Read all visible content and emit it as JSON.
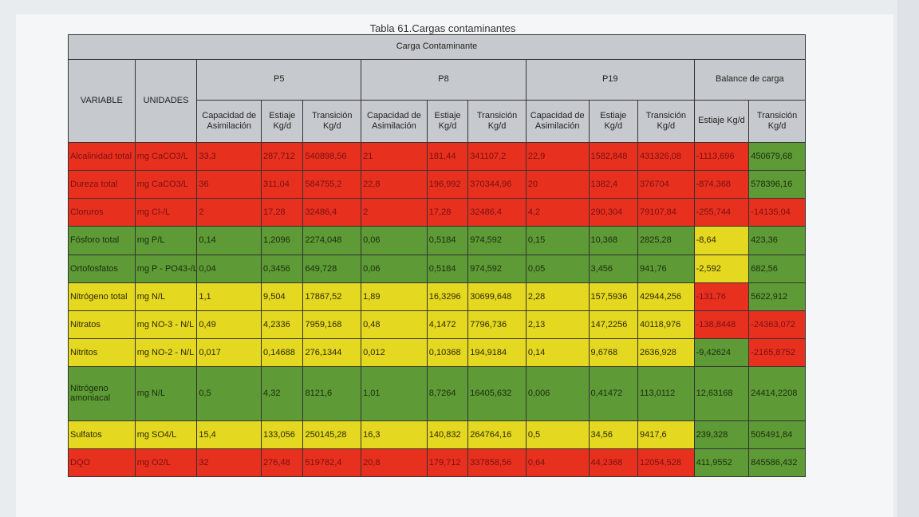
{
  "caption": "Tabla 61.Cargas contaminantes",
  "header": {
    "carga": "Carga Contaminante",
    "variable": "VARIABLE",
    "unidades": "UNIDADES",
    "groups": [
      "P5",
      "P8",
      "P19",
      "Balance de carga"
    ],
    "sub": [
      "Capacidad de Asimilación",
      "Estiaje Kg/d",
      "Transición Kg/d",
      "Capacidad de Asimilación",
      "Estiaje Kg/d",
      "Transición Kg/d",
      "Capacidad de Asimilación",
      "Estiaje Kg/d",
      "Transición Kg/d",
      "Estiaje Kg/d",
      "Transición Kg/d"
    ]
  },
  "colors": {
    "red": "#e8301f",
    "green": "#5e9a35",
    "yellow": "#e5d820",
    "header": "#c6c9cd"
  },
  "rows": [
    {
      "cells": [
        "Alcalinidad total",
        "mg CaCO3/L",
        "33,3",
        "287,712",
        "540898,56",
        "21",
        "181,44",
        "341107,2",
        "22,9",
        "1582,848",
        "431326,08",
        "-1113,696",
        "450679,68"
      ],
      "colors": [
        "r",
        "r",
        "r",
        "r",
        "r",
        "r",
        "r",
        "r",
        "r",
        "r",
        "r",
        "r",
        "g"
      ]
    },
    {
      "cells": [
        "Dureza total",
        "mg CaCO3/L",
        "36",
        "311,04",
        "584755,2",
        "22,8",
        "196,992",
        "370344,96",
        "20",
        "1382,4",
        "376704",
        "-874,368",
        "578396,16"
      ],
      "colors": [
        "r",
        "r",
        "r",
        "r",
        "r",
        "r",
        "r",
        "r",
        "r",
        "r",
        "r",
        "r",
        "g"
      ]
    },
    {
      "cells": [
        "Cloruros",
        "mg Cl-/L",
        "2",
        "17,28",
        "32486,4",
        "2",
        "17,28",
        "32486,4",
        "4,2",
        "290,304",
        "79107,84",
        "-255,744",
        "-14135,04"
      ],
      "colors": [
        "r",
        "r",
        "r",
        "r",
        "r",
        "r",
        "r",
        "r",
        "r",
        "r",
        "r",
        "r",
        "r"
      ]
    },
    {
      "cells": [
        "Fósforo total",
        "mg P/L",
        "0,14",
        "1,2096",
        "2274,048",
        "0,06",
        "0,5184",
        "974,592",
        "0,15",
        "10,368",
        "2825,28",
        "-8,64",
        "423,36"
      ],
      "colors": [
        "g",
        "g",
        "g",
        "g",
        "g",
        "g",
        "g",
        "g",
        "g",
        "g",
        "g",
        "y",
        "g"
      ]
    },
    {
      "cells": [
        "Ortofosfatos",
        "mg P - PO43-/L",
        "0,04",
        "0,3456",
        "649,728",
        "0,06",
        "0,5184",
        "974,592",
        "0,05",
        "3,456",
        "941,76",
        "-2,592",
        "682,56"
      ],
      "colors": [
        "g",
        "g",
        "g",
        "g",
        "g",
        "g",
        "g",
        "g",
        "g",
        "g",
        "g",
        "y",
        "g"
      ]
    },
    {
      "cells": [
        "Nitrógeno total",
        "mg N/L",
        "1,1",
        "9,504",
        "17867,52",
        "1,89",
        "16,3296",
        "30699,648",
        "2,28",
        "157,5936",
        "42944,256",
        "-131,76",
        "5622,912"
      ],
      "colors": [
        "y",
        "y",
        "y",
        "y",
        "y",
        "y",
        "y",
        "y",
        "y",
        "y",
        "y",
        "r",
        "g"
      ]
    },
    {
      "cells": [
        "Nitratos",
        "mg NO-3 - N/L",
        "0,49",
        "4,2336",
        "7959,168",
        "0,48",
        "4,1472",
        "7796,736",
        "2,13",
        "147,2256",
        "40118,976",
        "-138,8448",
        "-24363,072"
      ],
      "colors": [
        "y",
        "y",
        "y",
        "y",
        "y",
        "y",
        "y",
        "y",
        "y",
        "y",
        "y",
        "r",
        "r"
      ]
    },
    {
      "cells": [
        "Nitritos",
        "mg NO-2 - N/L",
        "0,017",
        "0,14688",
        "276,1344",
        "0,012",
        "0,10368",
        "194,9184",
        "0,14",
        "9,6768",
        "2636,928",
        "-9,42624",
        "-2165,8752"
      ],
      "colors": [
        "y",
        "y",
        "y",
        "y",
        "y",
        "y",
        "y",
        "y",
        "y",
        "y",
        "y",
        "g",
        "r"
      ]
    },
    {
      "cells": [
        "Nitrógeno amoniacal",
        "mg N/L",
        "0,5",
        "4,32",
        "8121,6",
        "1,01",
        "8,7264",
        "16405,632",
        "0,006",
        "0,41472",
        "113,0112",
        "12,63168",
        "24414,2208"
      ],
      "colors": [
        "g",
        "g",
        "g",
        "g",
        "g",
        "g",
        "g",
        "g",
        "g",
        "g",
        "g",
        "g",
        "g"
      ]
    },
    {
      "cells": [
        "Sulfatos",
        "mg SO4/L",
        "15,4",
        "133,056",
        "250145,28",
        "16,3",
        "140,832",
        "264764,16",
        "0,5",
        "34,56",
        "9417,6",
        "239,328",
        "505491,84"
      ],
      "colors": [
        "y",
        "y",
        "y",
        "y",
        "y",
        "y",
        "y",
        "y",
        "y",
        "y",
        "y",
        "g",
        "g"
      ]
    },
    {
      "cells": [
        "DQO",
        "mg O2/L",
        "32",
        "276,48",
        "519782,4",
        "20,8",
        "179,712",
        "337858,56",
        "0,64",
        "44,2368",
        "12054,528",
        "411,9552",
        "845586,432"
      ],
      "colors": [
        "r",
        "r",
        "r",
        "r",
        "r",
        "r",
        "r",
        "r",
        "r",
        "r",
        "r",
        "g",
        "g"
      ]
    }
  ]
}
